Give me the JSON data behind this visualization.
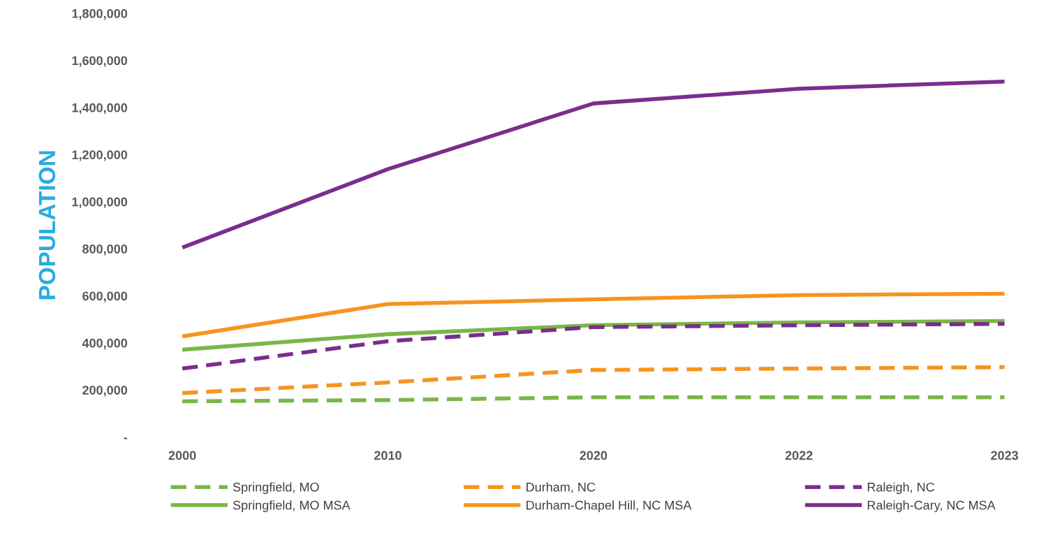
{
  "chart_data": {
    "type": "line",
    "ylabel": "POPULATION",
    "categories": [
      "2000",
      "2010",
      "2020",
      "2022",
      "2023"
    ],
    "ylim": [
      0,
      1800000
    ],
    "yticks": [
      {
        "value": 0,
        "label": "-"
      },
      {
        "value": 200000,
        "label": "200,000"
      },
      {
        "value": 400000,
        "label": "400,000"
      },
      {
        "value": 600000,
        "label": "600,000"
      },
      {
        "value": 800000,
        "label": "800,000"
      },
      {
        "value": 1000000,
        "label": "1,000,000"
      },
      {
        "value": 1200000,
        "label": "1,200,000"
      },
      {
        "value": 1400000,
        "label": "1,400,000"
      },
      {
        "value": 1600000,
        "label": "1,600,000"
      },
      {
        "value": 1800000,
        "label": "1,800,000"
      }
    ],
    "grid": false,
    "legend": "bottom",
    "marker": "none",
    "series": [
      {
        "name": "Springfield, MO",
        "color": "#7ab648",
        "line_style": "dashed",
        "values": [
          152000,
          157000,
          169000,
          169000,
          169000
        ]
      },
      {
        "name": "Springfield, MO MSA",
        "color": "#7ab648",
        "line_style": "solid",
        "values": [
          371000,
          437000,
          475000,
          487000,
          493000
        ]
      },
      {
        "name": "Durham, NC",
        "color": "#f7941d",
        "line_style": "dashed",
        "values": [
          187000,
          232000,
          285000,
          291000,
          297000
        ]
      },
      {
        "name": "Durham-Chapel Hill, NC MSA",
        "color": "#f7941d",
        "line_style": "solid",
        "values": [
          428000,
          565000,
          585000,
          603000,
          609000
        ]
      },
      {
        "name": "Raleigh, NC",
        "color": "#7b2d8e",
        "line_style": "dashed",
        "values": [
          291000,
          407000,
          467000,
          475000,
          481000
        ]
      },
      {
        "name": "Raleigh-Cary, NC MSA",
        "color": "#7b2d8e",
        "line_style": "solid",
        "values": [
          805000,
          1138000,
          1417000,
          1480000,
          1510000
        ]
      }
    ]
  }
}
